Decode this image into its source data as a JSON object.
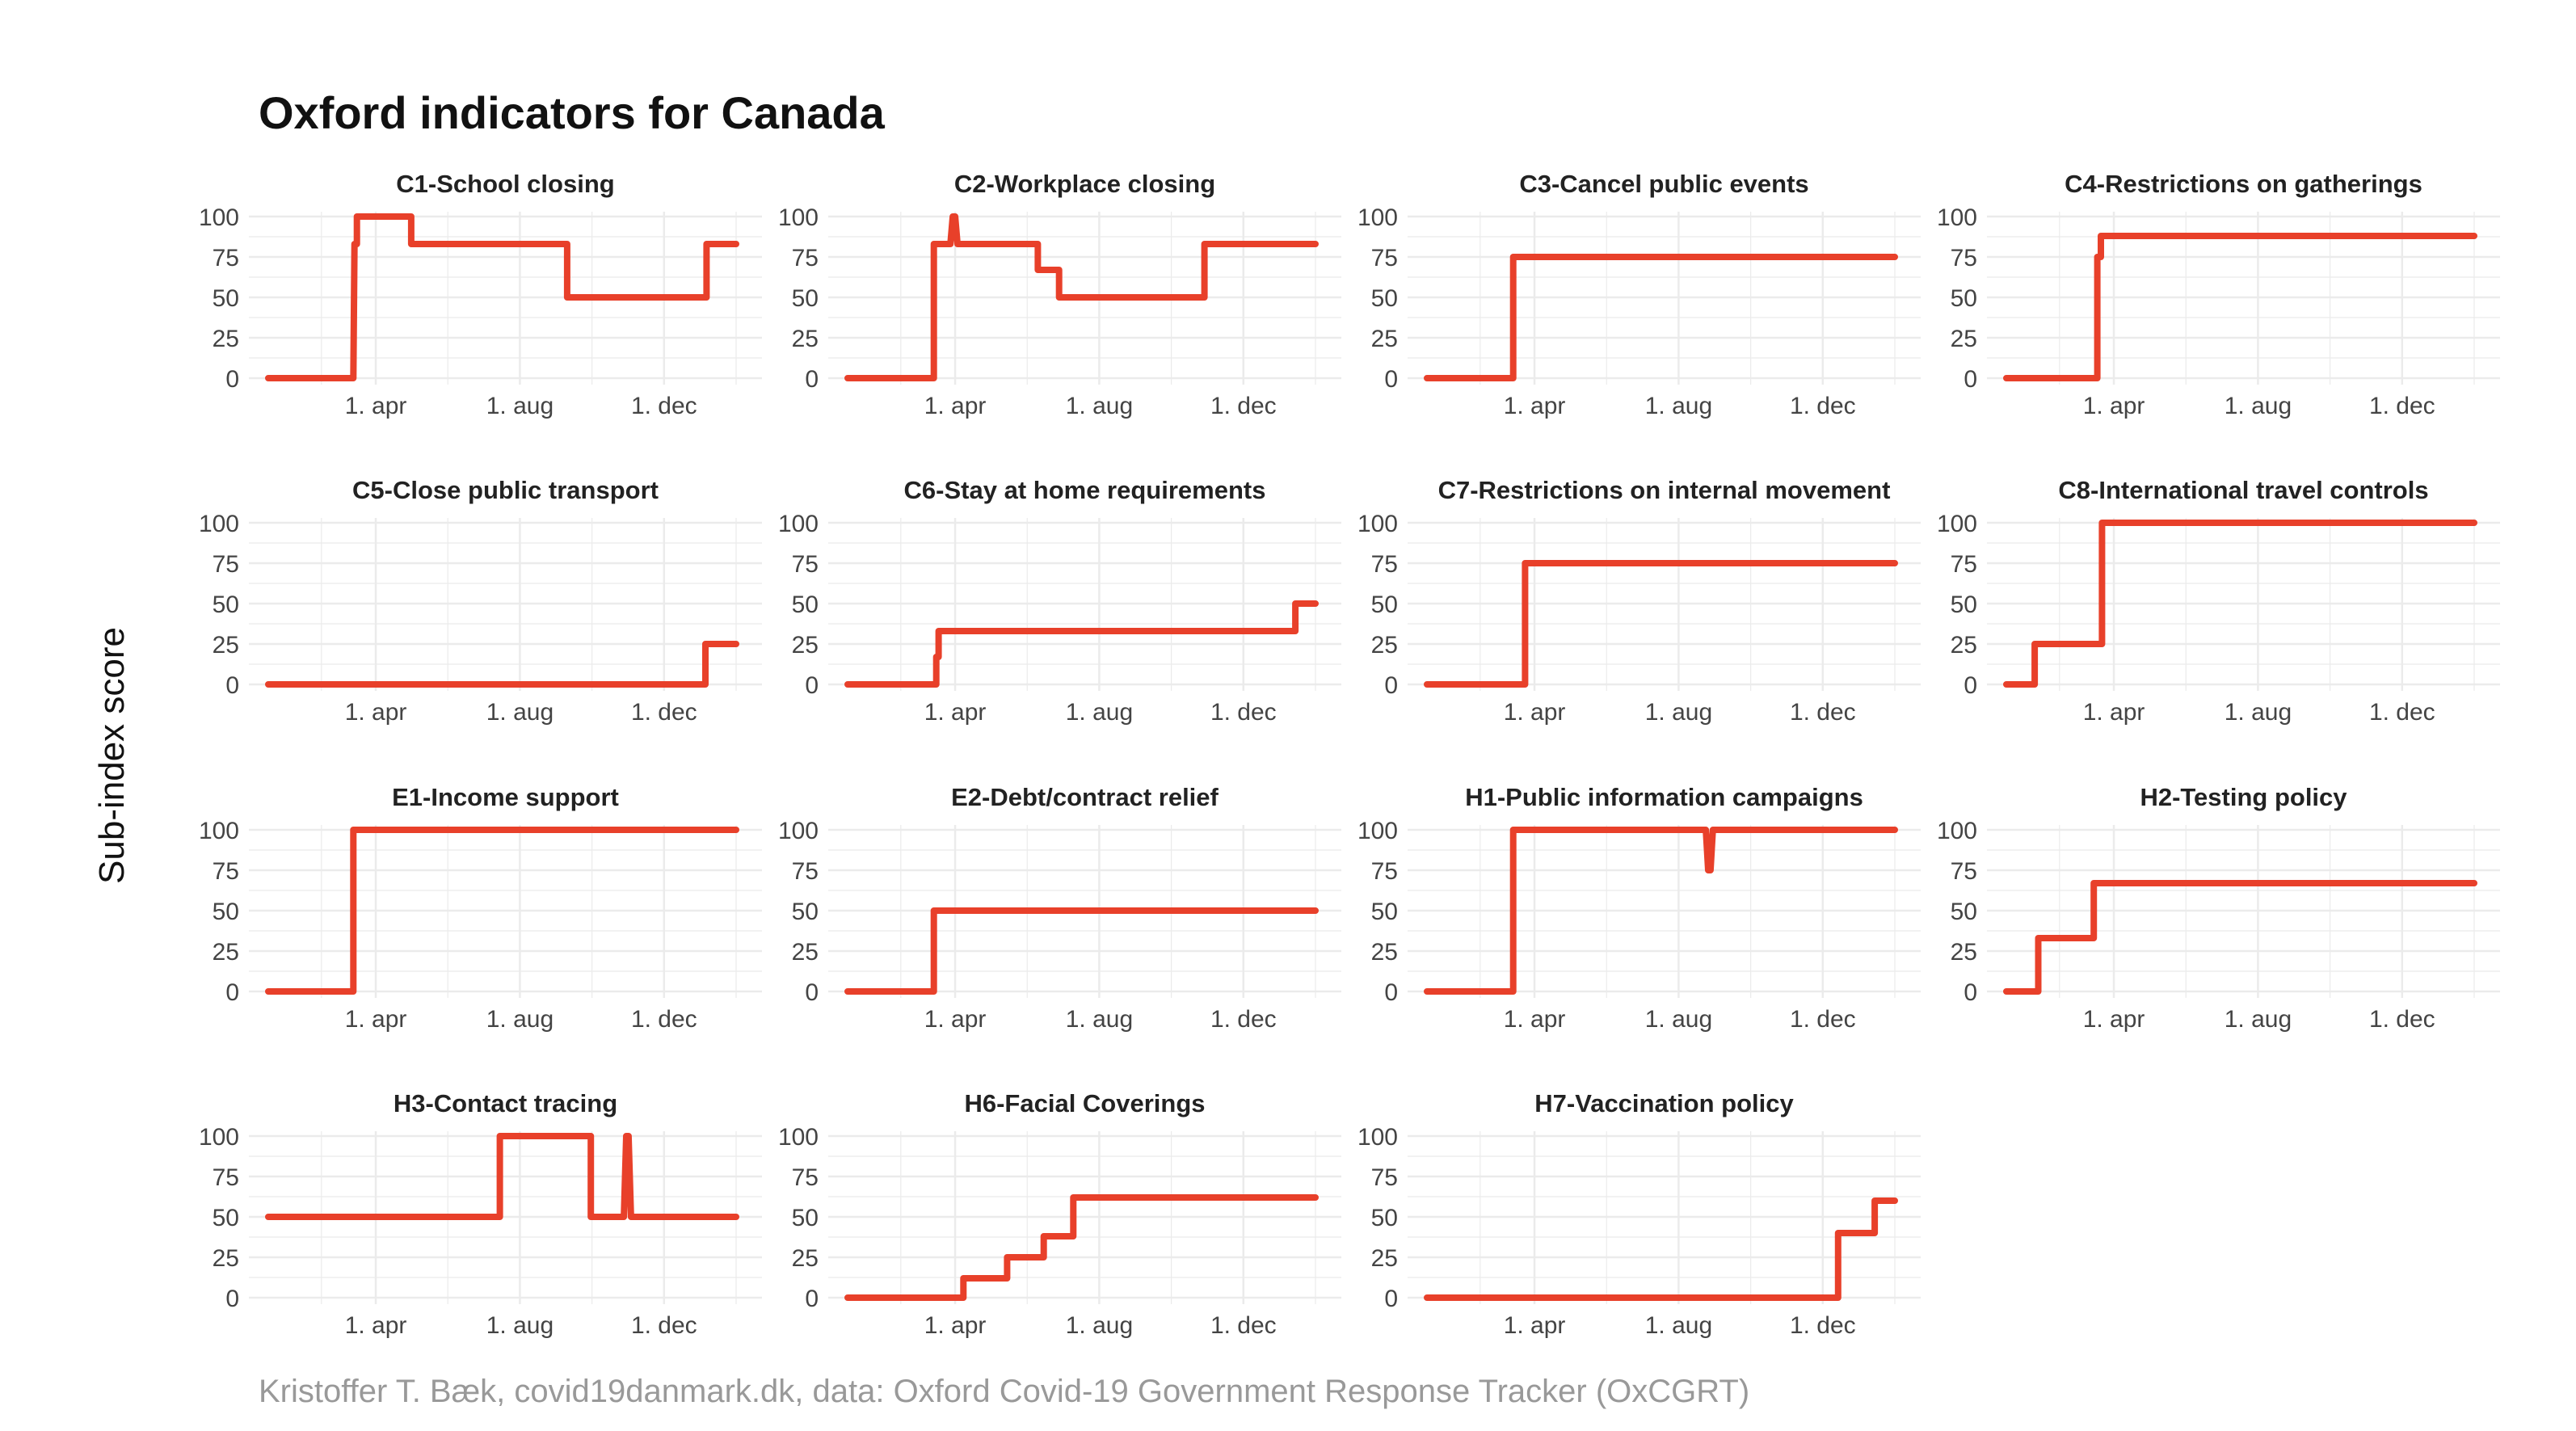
{
  "title": "Oxford indicators for Canada",
  "ylabel": "Sub-index score",
  "caption": "Kristoffer T. Bæk, covid19danmark.dk, data: Oxford Covid-19 Government Response Tracker (OxCGRT)",
  "colors": {
    "line": "#E8402A",
    "grid": "#EBEBEB",
    "text": "#222222",
    "caption": "#999999"
  },
  "chart_data": {
    "type": "line",
    "facets_layout": "4 columns × 4 rows",
    "grid": true,
    "ylim": [
      0,
      100
    ],
    "yticks": [
      0,
      25,
      50,
      75,
      100
    ],
    "xlim": [
      "2020-01-01",
      "2021-01-31"
    ],
    "xticks": [
      {
        "date": "2020-04-01",
        "label": "1. apr"
      },
      {
        "date": "2020-08-01",
        "label": "1. aug"
      },
      {
        "date": "2020-12-01",
        "label": "1. dec"
      }
    ],
    "panels": [
      {
        "title": "C1-School closing",
        "x": [
          "2020-01-01",
          "2020-03-13",
          "2020-03-14",
          "2020-03-16",
          "2020-03-16",
          "2020-05-01",
          "2020-05-01",
          "2020-09-10",
          "2020-09-10",
          "2021-01-06",
          "2021-01-06",
          "2021-01-31"
        ],
        "y": [
          0,
          0,
          83,
          83,
          100,
          100,
          83,
          83,
          50,
          50,
          83,
          83
        ]
      },
      {
        "title": "C2-Workplace closing",
        "x": [
          "2020-01-01",
          "2020-03-14",
          "2020-03-14",
          "2020-03-28",
          "2020-03-30",
          "2020-04-01",
          "2020-04-03",
          "2020-06-10",
          "2020-06-10",
          "2020-06-28",
          "2020-06-28",
          "2020-10-29",
          "2020-10-29",
          "2021-01-31"
        ],
        "y": [
          0,
          0,
          83,
          83,
          100,
          100,
          83,
          83,
          67,
          67,
          50,
          50,
          83,
          83
        ]
      },
      {
        "title": "C3-Cancel public events",
        "x": [
          "2020-01-01",
          "2020-03-14",
          "2020-03-14",
          "2021-01-31"
        ],
        "y": [
          0,
          0,
          75,
          75
        ]
      },
      {
        "title": "C4-Restrictions on gatherings",
        "x": [
          "2020-01-01",
          "2020-03-18",
          "2020-03-18",
          "2020-03-21",
          "2020-03-21",
          "2021-01-31"
        ],
        "y": [
          0,
          0,
          75,
          75,
          88,
          88
        ]
      },
      {
        "title": "C5-Close public transport",
        "x": [
          "2020-01-01",
          "2021-01-05",
          "2021-01-05",
          "2021-01-31"
        ],
        "y": [
          0,
          0,
          25,
          25
        ]
      },
      {
        "title": "C6-Stay at home requirements",
        "x": [
          "2020-01-01",
          "2020-03-16",
          "2020-03-16",
          "2020-03-18",
          "2020-03-18",
          "2021-01-14",
          "2021-01-14",
          "2021-01-31"
        ],
        "y": [
          0,
          0,
          17,
          17,
          33,
          33,
          50,
          50
        ]
      },
      {
        "title": "C7-Restrictions on internal movement",
        "x": [
          "2020-01-01",
          "2020-03-24",
          "2020-03-24",
          "2021-01-31"
        ],
        "y": [
          0,
          0,
          75,
          75
        ]
      },
      {
        "title": "C8-International travel controls",
        "x": [
          "2020-01-01",
          "2020-01-25",
          "2020-01-25",
          "2020-03-22",
          "2020-03-22",
          "2021-01-31"
        ],
        "y": [
          0,
          0,
          25,
          25,
          100,
          100
        ]
      },
      {
        "title": "E1-Income support",
        "x": [
          "2020-01-01",
          "2020-03-13",
          "2020-03-13",
          "2021-01-31"
        ],
        "y": [
          0,
          0,
          100,
          100
        ]
      },
      {
        "title": "E2-Debt/contract relief",
        "x": [
          "2020-01-01",
          "2020-03-14",
          "2020-03-14",
          "2021-01-31"
        ],
        "y": [
          0,
          0,
          50,
          50
        ]
      },
      {
        "title": "H1-Public information campaigns",
        "x": [
          "2020-01-01",
          "2020-03-14",
          "2020-03-14",
          "2020-08-24",
          "2020-08-26",
          "2020-08-28",
          "2020-08-30",
          "2021-01-31"
        ],
        "y": [
          0,
          0,
          100,
          100,
          75,
          75,
          100,
          100
        ]
      },
      {
        "title": "H2-Testing policy",
        "x": [
          "2020-01-01",
          "2020-01-28",
          "2020-01-28",
          "2020-03-15",
          "2020-03-15",
          "2021-01-31"
        ],
        "y": [
          0,
          0,
          33,
          33,
          67,
          67
        ]
      },
      {
        "title": "H3-Contact tracing",
        "x": [
          "2020-01-01",
          "2020-07-15",
          "2020-07-15",
          "2020-09-30",
          "2020-09-30",
          "2020-10-28",
          "2020-10-30",
          "2020-11-01",
          "2020-11-03",
          "2021-01-31"
        ],
        "y": [
          50,
          50,
          100,
          100,
          50,
          50,
          100,
          100,
          50,
          50
        ]
      },
      {
        "title": "H6-Facial Coverings",
        "x": [
          "2020-01-01",
          "2020-04-08",
          "2020-04-08",
          "2020-05-15",
          "2020-05-15",
          "2020-06-15",
          "2020-06-15",
          "2020-07-10",
          "2020-07-10",
          "2021-01-31"
        ],
        "y": [
          0,
          0,
          12,
          12,
          25,
          25,
          38,
          38,
          62,
          62
        ]
      },
      {
        "title": "H7-Vaccination policy",
        "x": [
          "2020-01-01",
          "2020-12-14",
          "2020-12-14",
          "2021-01-14",
          "2021-01-14",
          "2021-01-31"
        ],
        "y": [
          0,
          0,
          40,
          40,
          60,
          60
        ]
      }
    ]
  }
}
